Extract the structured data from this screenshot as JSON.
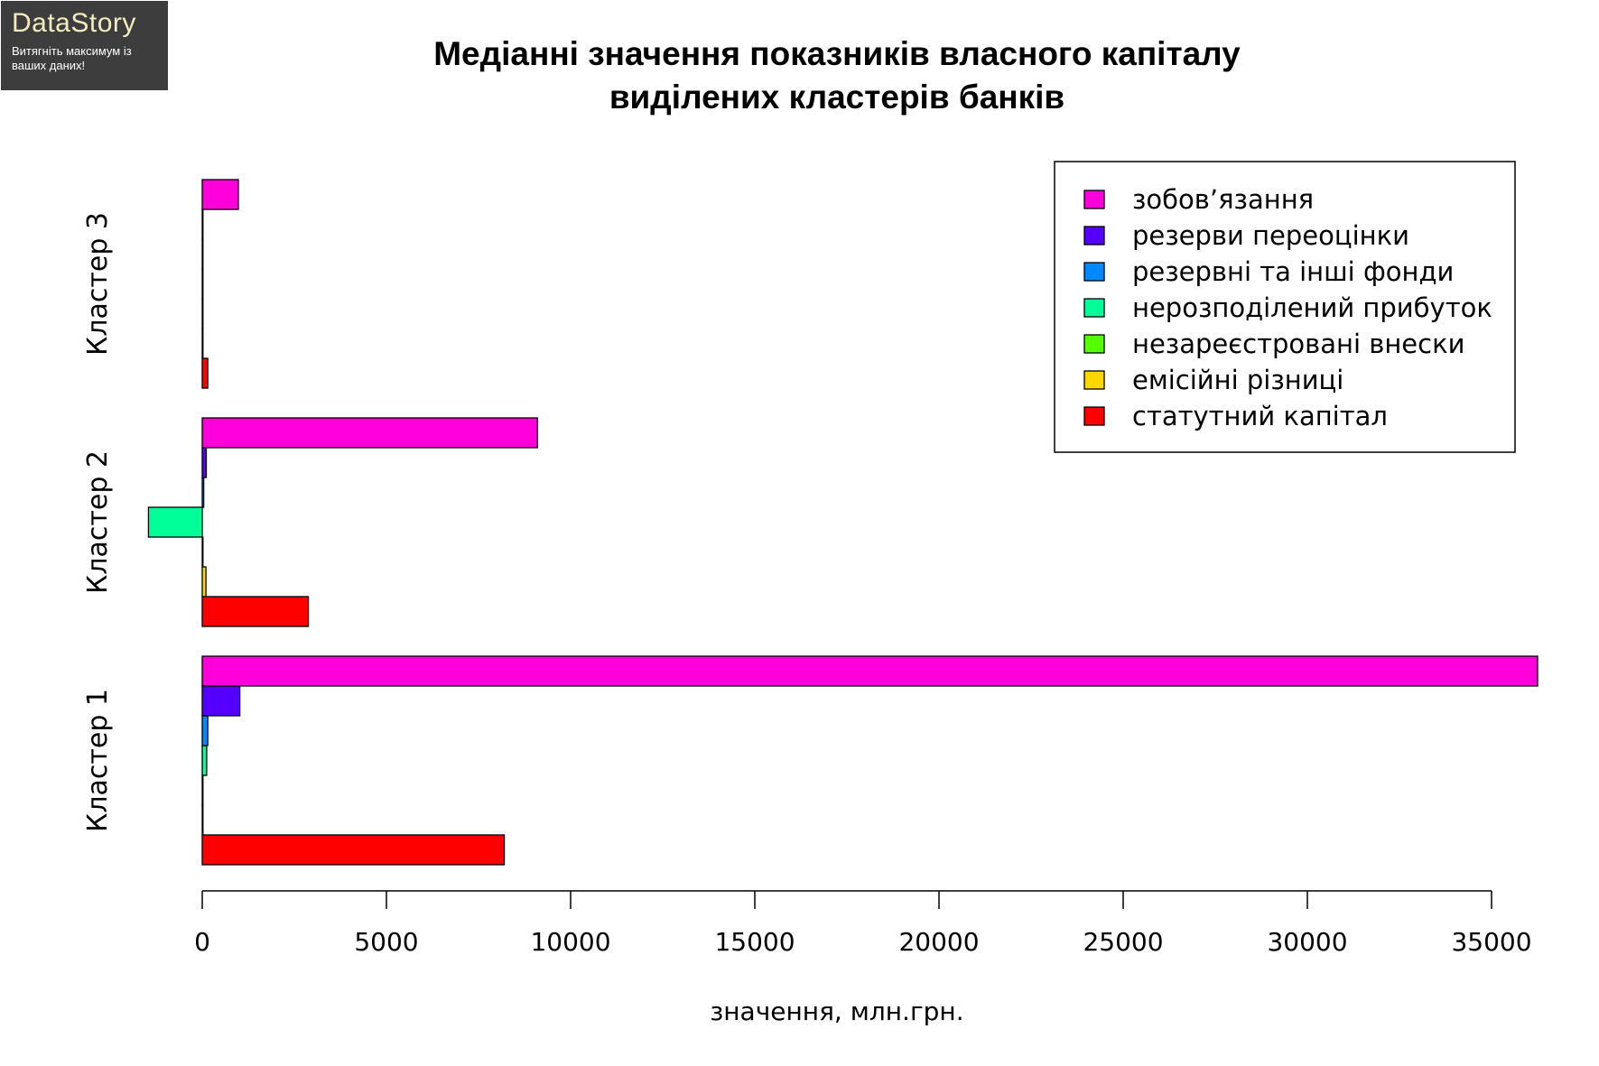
{
  "logo": {
    "brand": "DataStory",
    "tagline": "Витягніть максимум із ваших даних!"
  },
  "chart_data": {
    "type": "bar",
    "orientation": "horizontal",
    "title": "Медіанні значення показників власного капіталу виділених кластерів банків",
    "title_lines": [
      "Медіанні значення показників власного капіталу",
      "виділених кластерів банків"
    ],
    "xlabel": "значення, млн.грн.",
    "ylabel": "",
    "xlim": [
      0,
      35000
    ],
    "xticks": [
      0,
      5000,
      10000,
      15000,
      20000,
      25000,
      30000,
      35000
    ],
    "xtick_labels": [
      "0",
      "5000",
      "10000",
      "15000",
      "20000",
      "25000",
      "30000",
      "35000"
    ],
    "categories": [
      "Кластер 1",
      "Кластер 2",
      "Кластер 3"
    ],
    "series": [
      {
        "name": "статутний капітал",
        "color": "#ff0000",
        "values": [
          8200,
          2880,
          150
        ]
      },
      {
        "name": "емісійні різниці",
        "color": "#ffd700",
        "values": [
          0,
          100,
          0
        ]
      },
      {
        "name": "незареєстровані внески",
        "color": "#55ff00",
        "values": [
          0,
          0,
          0
        ]
      },
      {
        "name": "нерозподілений прибуток",
        "color": "#00ff99",
        "values": [
          120,
          -1460,
          0
        ]
      },
      {
        "name": "резервні та інші фонди",
        "color": "#0088ff",
        "values": [
          150,
          40,
          0
        ]
      },
      {
        "name": "резерви переоцінки",
        "color": "#5500ff",
        "values": [
          1020,
          110,
          10
        ]
      },
      {
        "name": "зобов’язання",
        "color": "#ff00dd",
        "values": [
          36250,
          9100,
          980
        ]
      }
    ],
    "legend_position": "top-right",
    "legend_order": [
      "зобов’язання",
      "резерви переоцінки",
      "резервні та інші фонди",
      "нерозподілений прибуток",
      "незареєстровані внески",
      "емісійні різниці",
      "статутний капітал"
    ],
    "grid": false
  }
}
